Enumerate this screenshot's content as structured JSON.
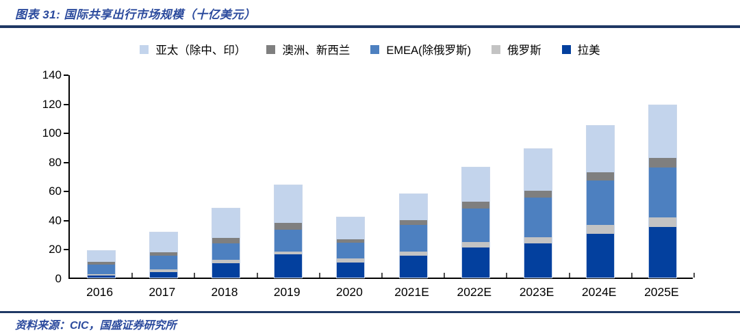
{
  "header": {
    "title": "图表 31:  国际共享出行市场规模（十亿美元）"
  },
  "footer": {
    "source": "资料来源：CIC，国盛证券研究所"
  },
  "colors": {
    "accent_navy": "#1f3864",
    "title_blue": "#2b4a9d"
  },
  "chart_data": {
    "type": "bar",
    "stacked": true,
    "title": "国际共享出行市场规模（十亿美元）",
    "xlabel": "",
    "ylabel": "",
    "unit": "十亿美元",
    "ylim": [
      0,
      140
    ],
    "ytick_step": 20,
    "grid": false,
    "legend_position": "top",
    "categories": [
      "2016",
      "2017",
      "2018",
      "2019",
      "2020",
      "2021E",
      "2022E",
      "2023E",
      "2024E",
      "2025E"
    ],
    "series": [
      {
        "name": "拉美",
        "color": "#03409e",
        "values": [
          1.5,
          4,
          10,
          16,
          10.5,
          15,
          20.5,
          23.5,
          30,
          35
        ]
      },
      {
        "name": "俄罗斯",
        "color": "#c3c3c3",
        "values": [
          1,
          1.5,
          2,
          2,
          2.5,
          3,
          4,
          4,
          6,
          6.5
        ]
      },
      {
        "name": "EMEA(除俄罗斯)",
        "color": "#4d80c0",
        "values": [
          6.5,
          9.5,
          11.5,
          15,
          11,
          18,
          23,
          27.5,
          30.5,
          34
        ]
      },
      {
        "name": "澳洲、新西兰",
        "color": "#7f7f7f",
        "values": [
          2,
          2.5,
          4,
          4.5,
          2.5,
          3.5,
          4.5,
          4.5,
          6,
          6.5
        ]
      },
      {
        "name": "亚太（除中、印）",
        "color": "#c3d4ec",
        "values": [
          7.5,
          13.5,
          20,
          26,
          15,
          18,
          23.5,
          29,
          32,
          36.5
        ]
      }
    ],
    "totals": [
      18.5,
      31,
      47.5,
      63.5,
      41.5,
      57.5,
      75.5,
      88.5,
      104.5,
      118.5
    ],
    "legend_order": [
      "亚太（除中、印）",
      "澳洲、新西兰",
      "EMEA(除俄罗斯)",
      "俄罗斯",
      "拉美"
    ]
  }
}
